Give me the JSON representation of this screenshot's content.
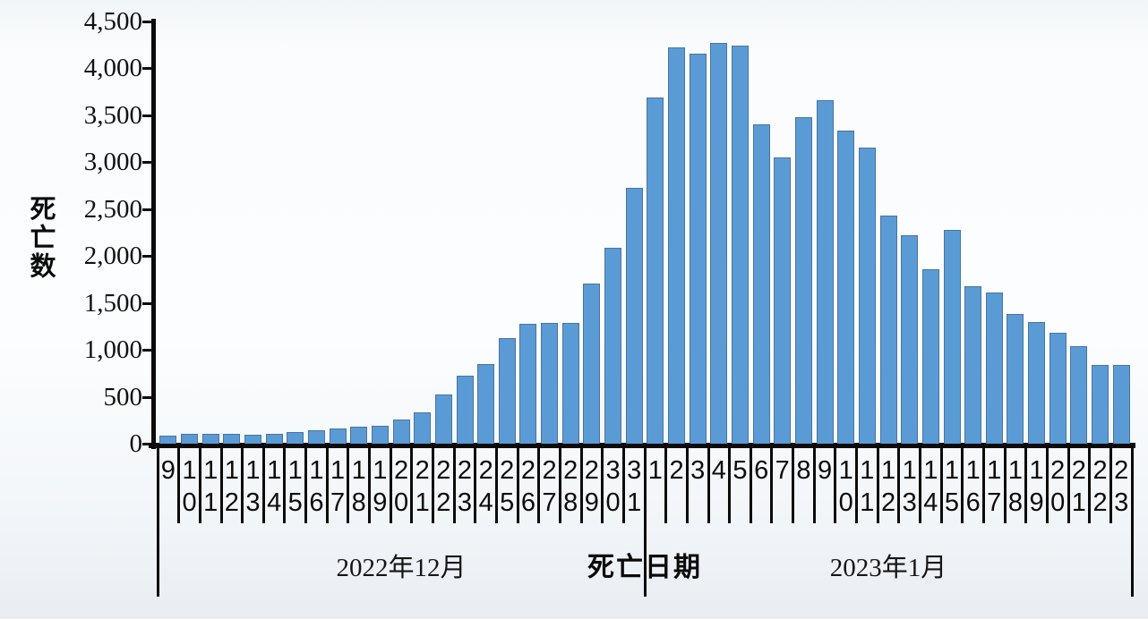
{
  "chart_data": {
    "type": "bar",
    "title": "",
    "ylabel": "死亡数",
    "xlabel": "死亡日期",
    "ylim": [
      0,
      4500
    ],
    "ytick_step": 500,
    "ytick_labels": [
      "0",
      "500",
      "1,000",
      "1,500",
      "2,000",
      "2,500",
      "3,000",
      "3,500",
      "4,000",
      "4,500"
    ],
    "grid": false,
    "legend_position": "none",
    "bar_color": "#5b9bd5",
    "axis_color": "#0b0b0b",
    "groups": [
      {
        "month_label": "2022年12月",
        "categories": [
          "9",
          "10",
          "11",
          "12",
          "13",
          "14",
          "15",
          "16",
          "17",
          "18",
          "19",
          "20",
          "21",
          "22",
          "23",
          "24",
          "25",
          "26",
          "27",
          "28",
          "29",
          "30",
          "31"
        ],
        "values": [
          90,
          105,
          105,
          105,
          100,
          105,
          120,
          140,
          160,
          180,
          195,
          255,
          330,
          525,
          720,
          850,
          1120,
          1280,
          1290,
          1290,
          1710,
          2090,
          2720
        ]
      },
      {
        "month_label": "2023年1月",
        "categories": [
          "1",
          "2",
          "3",
          "4",
          "5",
          "6",
          "7",
          "8",
          "9",
          "10",
          "11",
          "12",
          "13",
          "14",
          "15",
          "16",
          "17",
          "18",
          "19",
          "20",
          "21",
          "22",
          "23"
        ],
        "values": [
          3690,
          4220,
          4150,
          4270,
          4240,
          3400,
          3050,
          3480,
          3660,
          3330,
          3150,
          2430,
          2220,
          1860,
          2280,
          1680,
          1610,
          1380,
          1300,
          1180,
          1040,
          840,
          840
        ]
      }
    ]
  }
}
